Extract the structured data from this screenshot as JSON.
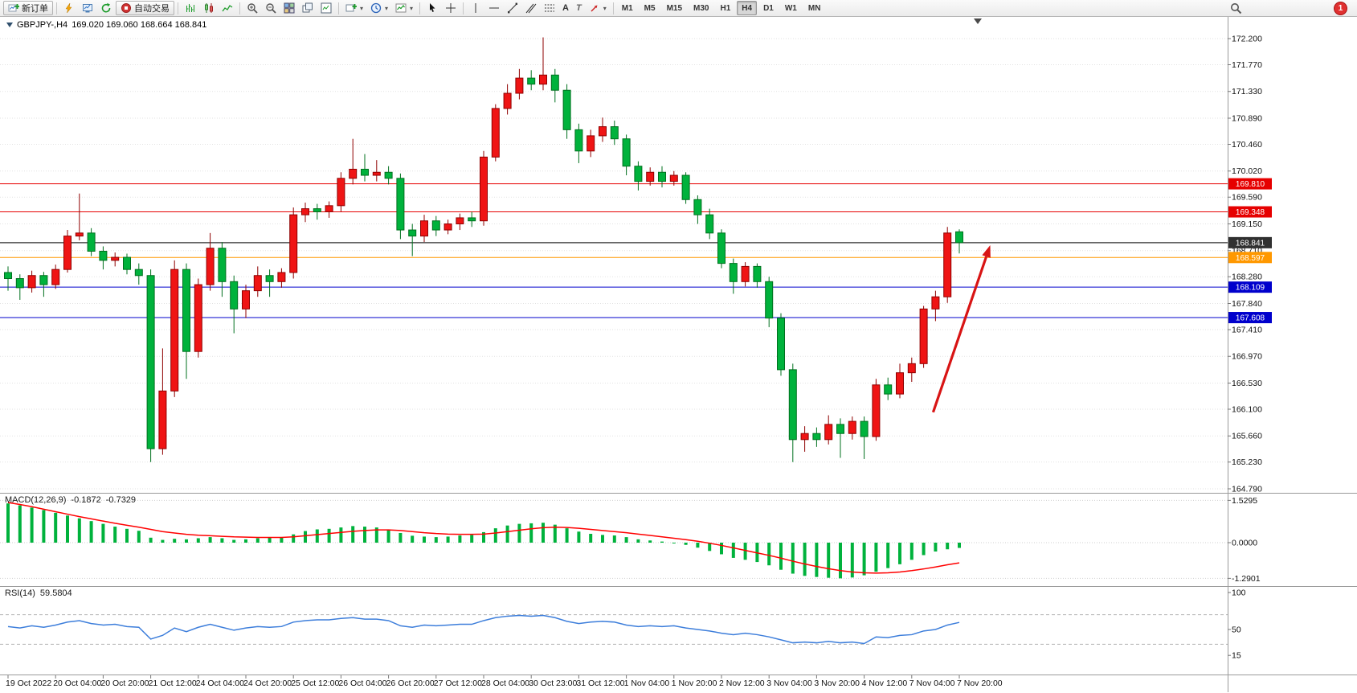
{
  "toolbar": {
    "new_order_label": "新订单",
    "autotrading_label": "自动交易",
    "text_tool_glyph": "A",
    "label_tool_glyph": "T",
    "timeframes": [
      "M1",
      "M5",
      "M15",
      "M30",
      "H1",
      "H4",
      "D1",
      "W1",
      "MN"
    ],
    "active_timeframe": "H4",
    "badge": "1"
  },
  "window": {
    "symbol_period": "GBPJPY-,H4",
    "ohlc_text": "169.020 169.060 168.664 168.841"
  },
  "chart_data": {
    "type": "candlestick",
    "symbol": "GBPJPY-",
    "period": "H4",
    "current": {
      "open": 169.02,
      "high": 169.06,
      "low": 168.664,
      "close": 168.841
    },
    "bull_color": "#ef1414",
    "bull_dark": "#8f0000",
    "bear_color": "#00b23c",
    "bear_dark": "#00701e",
    "price_axis_labels": [
      "172.200",
      "171.770",
      "171.330",
      "170.890",
      "170.460",
      "170.020",
      "169.590",
      "169.150",
      "168.710",
      "168.280",
      "167.840",
      "167.410",
      "166.970",
      "166.530",
      "166.100",
      "165.660",
      "165.230",
      "164.790"
    ],
    "time_axis_labels": [
      "19 Oct 2022",
      "20 Oct 04:00",
      "20 Oct 20:00",
      "21 Oct 12:00",
      "24 Oct 04:00",
      "24 Oct 20:00",
      "25 Oct 12:00",
      "26 Oct 04:00",
      "26 Oct 20:00",
      "27 Oct 12:00",
      "28 Oct 04:00",
      "30 Oct 23:00",
      "31 Oct 12:00",
      "1 Nov 04:00",
      "1 Nov 20:00",
      "2 Nov 12:00",
      "3 Nov 04:00",
      "3 Nov 20:00",
      "4 Nov 12:00",
      "7 Nov 04:00",
      "7 Nov 20:00"
    ],
    "hlines": [
      {
        "price": 169.81,
        "label": "169.810",
        "color": "#e60000",
        "current": false
      },
      {
        "price": 169.348,
        "label": "169.348",
        "color": "#e60000",
        "current": false
      },
      {
        "price": 168.841,
        "label": "168.841",
        "color": "#303030",
        "current": true
      },
      {
        "price": 168.597,
        "label": "168.597",
        "color": "#ff9800",
        "current": false
      },
      {
        "price": 168.109,
        "label": "168.109",
        "color": "#0000cc",
        "current": false
      },
      {
        "price": 167.608,
        "label": "167.608",
        "color": "#0000cc",
        "current": false
      }
    ],
    "arrow": {
      "from_bar": 77.8,
      "from_price": 166.05,
      "to_bar": 82.6,
      "to_price": 168.8,
      "color": "#d81414"
    },
    "candles": [
      [
        168.35,
        168.45,
        168.05,
        168.25
      ],
      [
        168.25,
        168.32,
        167.9,
        168.1
      ],
      [
        168.1,
        168.38,
        168.02,
        168.3
      ],
      [
        168.3,
        168.36,
        167.95,
        168.15
      ],
      [
        168.15,
        168.48,
        168.08,
        168.4
      ],
      [
        168.4,
        169.05,
        168.35,
        168.95
      ],
      [
        168.95,
        169.65,
        168.88,
        169.0
      ],
      [
        169.0,
        169.08,
        168.62,
        168.7
      ],
      [
        168.7,
        168.78,
        168.4,
        168.55
      ],
      [
        168.55,
        168.68,
        168.45,
        168.6
      ],
      [
        168.6,
        168.66,
        168.32,
        168.4
      ],
      [
        168.4,
        168.5,
        168.15,
        168.3
      ],
      [
        168.3,
        168.4,
        165.23,
        165.45
      ],
      [
        165.45,
        167.1,
        165.35,
        166.4
      ],
      [
        166.4,
        168.55,
        166.3,
        168.4
      ],
      [
        168.4,
        168.5,
        166.6,
        167.05
      ],
      [
        167.05,
        168.25,
        166.95,
        168.15
      ],
      [
        168.15,
        169.0,
        168.05,
        168.75
      ],
      [
        168.75,
        168.85,
        167.95,
        168.2
      ],
      [
        168.2,
        168.3,
        167.35,
        167.75
      ],
      [
        167.75,
        168.15,
        167.6,
        168.05
      ],
      [
        168.05,
        168.45,
        167.95,
        168.3
      ],
      [
        168.3,
        168.4,
        167.95,
        168.2
      ],
      [
        168.2,
        168.42,
        168.1,
        168.35
      ],
      [
        168.35,
        169.42,
        168.25,
        169.3
      ],
      [
        169.3,
        169.5,
        169.18,
        169.4
      ],
      [
        169.4,
        169.48,
        169.22,
        169.35
      ],
      [
        169.35,
        169.52,
        169.25,
        169.45
      ],
      [
        169.45,
        170.0,
        169.35,
        169.9
      ],
      [
        169.9,
        170.55,
        169.8,
        170.05
      ],
      [
        170.05,
        170.3,
        169.85,
        169.95
      ],
      [
        169.95,
        170.2,
        169.85,
        170.0
      ],
      [
        170.0,
        170.1,
        169.8,
        169.9
      ],
      [
        169.9,
        169.98,
        168.9,
        169.05
      ],
      [
        169.05,
        169.15,
        168.62,
        168.95
      ],
      [
        168.95,
        169.3,
        168.85,
        169.2
      ],
      [
        169.2,
        169.28,
        168.95,
        169.05
      ],
      [
        169.05,
        169.22,
        168.98,
        169.15
      ],
      [
        169.15,
        169.32,
        169.05,
        169.25
      ],
      [
        169.25,
        169.35,
        169.1,
        169.2
      ],
      [
        169.2,
        170.35,
        169.12,
        170.25
      ],
      [
        170.25,
        171.12,
        170.18,
        171.05
      ],
      [
        171.05,
        171.45,
        170.95,
        171.3
      ],
      [
        171.3,
        171.7,
        171.2,
        171.55
      ],
      [
        171.55,
        171.68,
        171.35,
        171.45
      ],
      [
        171.45,
        172.22,
        171.35,
        171.6
      ],
      [
        171.6,
        171.7,
        171.15,
        171.35
      ],
      [
        171.35,
        171.45,
        170.55,
        170.7
      ],
      [
        170.7,
        170.8,
        170.15,
        170.35
      ],
      [
        170.35,
        170.7,
        170.25,
        170.6
      ],
      [
        170.6,
        170.9,
        170.5,
        170.75
      ],
      [
        170.75,
        170.85,
        170.45,
        170.55
      ],
      [
        170.55,
        170.62,
        169.95,
        170.1
      ],
      [
        170.1,
        170.18,
        169.7,
        169.85
      ],
      [
        169.85,
        170.08,
        169.78,
        170.0
      ],
      [
        170.0,
        170.1,
        169.75,
        169.85
      ],
      [
        169.85,
        170.02,
        169.78,
        169.95
      ],
      [
        169.95,
        170.0,
        169.48,
        169.55
      ],
      [
        169.55,
        169.62,
        169.15,
        169.3
      ],
      [
        169.3,
        169.4,
        168.9,
        169.0
      ],
      [
        169.0,
        169.06,
        168.42,
        168.5
      ],
      [
        168.5,
        168.58,
        168.0,
        168.2
      ],
      [
        168.2,
        168.52,
        168.12,
        168.45
      ],
      [
        168.45,
        168.5,
        168.1,
        168.2
      ],
      [
        168.2,
        168.28,
        167.45,
        167.6
      ],
      [
        167.6,
        167.68,
        166.65,
        166.75
      ],
      [
        166.75,
        166.85,
        165.23,
        165.6
      ],
      [
        165.6,
        165.82,
        165.4,
        165.7
      ],
      [
        165.7,
        165.8,
        165.48,
        165.6
      ],
      [
        165.6,
        166.0,
        165.52,
        165.85
      ],
      [
        165.85,
        165.95,
        165.3,
        165.7
      ],
      [
        165.7,
        165.98,
        165.6,
        165.9
      ],
      [
        165.9,
        165.98,
        165.28,
        165.65
      ],
      [
        165.65,
        166.6,
        165.58,
        166.5
      ],
      [
        166.5,
        166.62,
        166.25,
        166.35
      ],
      [
        166.35,
        166.85,
        166.28,
        166.7
      ],
      [
        166.7,
        166.95,
        166.55,
        166.85
      ],
      [
        166.85,
        167.8,
        166.78,
        167.75
      ],
      [
        167.75,
        168.05,
        167.55,
        167.95
      ],
      [
        167.95,
        169.1,
        167.85,
        169.0
      ],
      [
        169.02,
        169.06,
        168.664,
        168.841
      ]
    ],
    "macd": {
      "label": "MACD(12,26,9)",
      "main_value": "-0.1872",
      "signal_value": "-0.7329",
      "axis_labels": [
        "1.5295",
        "0.0000",
        "-1.2901"
      ],
      "histogram_color": "#00b23c",
      "signal_color": "#ff0000",
      "histogram": [
        1.42,
        1.35,
        1.27,
        1.18,
        1.08,
        0.98,
        0.88,
        0.78,
        0.68,
        0.58,
        0.5,
        0.43,
        0.18,
        0.1,
        0.14,
        0.12,
        0.16,
        0.2,
        0.16,
        0.1,
        0.12,
        0.16,
        0.18,
        0.2,
        0.3,
        0.42,
        0.48,
        0.5,
        0.55,
        0.6,
        0.58,
        0.55,
        0.48,
        0.35,
        0.25,
        0.22,
        0.2,
        0.22,
        0.26,
        0.28,
        0.38,
        0.52,
        0.62,
        0.68,
        0.7,
        0.72,
        0.65,
        0.52,
        0.4,
        0.32,
        0.28,
        0.26,
        0.2,
        0.12,
        0.08,
        0.04,
        0.0,
        -0.08,
        -0.18,
        -0.3,
        -0.42,
        -0.55,
        -0.62,
        -0.7,
        -0.82,
        -0.98,
        -1.12,
        -1.2,
        -1.24,
        -1.27,
        -1.29,
        -1.26,
        -1.18,
        -1.05,
        -0.92,
        -0.78,
        -0.62,
        -0.45,
        -0.32,
        -0.24,
        -0.19
      ],
      "signal": [
        1.45,
        1.38,
        1.3,
        1.21,
        1.12,
        1.03,
        0.94,
        0.86,
        0.78,
        0.7,
        0.63,
        0.56,
        0.48,
        0.4,
        0.35,
        0.3,
        0.27,
        0.25,
        0.23,
        0.21,
        0.2,
        0.19,
        0.19,
        0.19,
        0.21,
        0.25,
        0.29,
        0.33,
        0.37,
        0.41,
        0.44,
        0.46,
        0.46,
        0.44,
        0.4,
        0.36,
        0.33,
        0.31,
        0.3,
        0.3,
        0.31,
        0.35,
        0.4,
        0.45,
        0.5,
        0.54,
        0.56,
        0.55,
        0.52,
        0.48,
        0.44,
        0.4,
        0.36,
        0.31,
        0.26,
        0.21,
        0.16,
        0.11,
        0.05,
        -0.02,
        -0.1,
        -0.19,
        -0.28,
        -0.37,
        -0.46,
        -0.56,
        -0.67,
        -0.77,
        -0.86,
        -0.94,
        -1.01,
        -1.06,
        -1.09,
        -1.1,
        -1.09,
        -1.06,
        -1.01,
        -0.95,
        -0.88,
        -0.8,
        -0.73
      ]
    },
    "rsi": {
      "label": "RSI(14)",
      "value": "59.5804",
      "axis_labels": [
        "100",
        "50",
        "15"
      ],
      "levels": [
        70,
        30
      ],
      "line_color": "#3d7edb",
      "series": [
        54,
        52,
        55,
        53,
        56,
        60,
        62,
        58,
        56,
        57,
        54,
        53,
        37,
        42,
        52,
        47,
        53,
        57,
        53,
        49,
        52,
        54,
        53,
        54,
        60,
        62,
        63,
        63,
        65,
        66,
        64,
        64,
        62,
        55,
        53,
        56,
        55,
        56,
        57,
        57,
        62,
        66,
        68,
        69,
        68,
        69,
        66,
        61,
        58,
        60,
        61,
        60,
        56,
        54,
        55,
        54,
        55,
        52,
        50,
        48,
        45,
        43,
        45,
        43,
        40,
        36,
        32,
        33,
        32,
        34,
        32,
        33,
        31,
        40,
        39,
        42,
        43,
        48,
        50,
        56,
        59.58
      ]
    }
  }
}
